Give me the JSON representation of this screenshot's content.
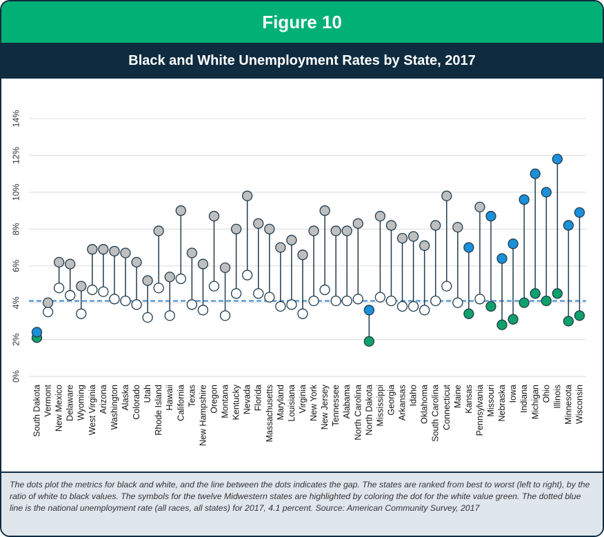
{
  "figure_label": "Figure 10",
  "chart_title": "Black and White Unemployment Rates by State, 2017",
  "footnote": "The dots plot the metrics for black and white, and the line between the dots indicates the gap. The states are ranked from best to worst (left to right), by the ratio of white to black values. The symbols for the twelve Midwestern states are highlighted by coloring the dot for the white value green. The dotted blue line is the national unemployment rate (all races, all states) for 2017, 4.1 percent. Source: American Community Survey, 2017",
  "colors": {
    "banner": "#00b074",
    "title_bar": "#0f2b40",
    "black_dot": "#bfbfbf",
    "white_dot": "#ffffff",
    "midwest_black_dot": "#1c8fd9",
    "midwest_white_dot": "#10a06a",
    "stem": "#1f3b4d",
    "national_line": "#5b9bd5",
    "grid": "#d9d9d9"
  },
  "chart_data": {
    "type": "scatter",
    "title": "Black and White Unemployment Rates by State, 2017",
    "ylim": [
      0,
      14
    ],
    "yticks": [
      "0%",
      "2%",
      "4%",
      "6%",
      "8%",
      "10%",
      "12%",
      "14%"
    ],
    "grid": true,
    "reference_line": {
      "value": 4.1
    },
    "categories": [
      "South Dakota",
      "Vermont",
      "New Mexico",
      "Delaware",
      "Wyoming",
      "West Virginia",
      "Arizona",
      "Washington",
      "Alaska",
      "Colorado",
      "Utah",
      "Rhode Island",
      "Hawaii",
      "California",
      "Texas",
      "New Hampshire",
      "Oregon",
      "Montana",
      "Kentucky",
      "Nevada",
      "Florida",
      "Massachusetts",
      "Maryland",
      "Louisiana",
      "Virginia",
      "New York",
      "New Jersey",
      "Tennessee",
      "Alabama",
      "North Carolina",
      "North Dakota",
      "Mississippi",
      "Georgia",
      "Arkansas",
      "Idaho",
      "Oklahoma",
      "South Carolina",
      "Connecticut",
      "Maine",
      "Kansas",
      "Pennsylvania",
      "Missouri",
      "Nebraska",
      "Iowa",
      "Indiana",
      "Michigan",
      "Ohio",
      "Illinois",
      "Minnesota",
      "Wisconsin"
    ],
    "series": [
      {
        "values": [
          2.4,
          4.0,
          6.2,
          6.1,
          4.9,
          6.9,
          6.9,
          6.8,
          6.7,
          6.2,
          5.2,
          7.9,
          5.4,
          9.0,
          6.7,
          6.1,
          8.7,
          5.9,
          8.0,
          9.8,
          8.3,
          8.0,
          7.0,
          7.4,
          6.6,
          7.9,
          9.0,
          7.9,
          7.9,
          8.3,
          3.6,
          8.7,
          8.2,
          7.5,
          7.6,
          7.1,
          8.2,
          9.8,
          8.1,
          7.0,
          9.2,
          8.7,
          6.4,
          7.2,
          9.6,
          11.0,
          10.0,
          11.8,
          8.2,
          8.9
        ]
      },
      {
        "values": [
          2.1,
          3.5,
          4.8,
          4.4,
          3.4,
          4.7,
          4.6,
          4.2,
          4.1,
          3.9,
          3.2,
          4.8,
          3.3,
          5.3,
          3.9,
          3.6,
          4.9,
          3.3,
          4.5,
          5.5,
          4.5,
          4.3,
          3.8,
          3.9,
          3.4,
          4.1,
          4.7,
          4.1,
          4.1,
          4.2,
          1.9,
          4.3,
          4.1,
          3.8,
          3.8,
          3.6,
          4.1,
          4.9,
          4.0,
          3.4,
          4.2,
          3.8,
          2.8,
          3.1,
          4.0,
          4.5,
          4.1,
          4.5,
          3.0,
          3.3
        ]
      }
    ],
    "midwest": [
      "South Dakota",
      "North Dakota",
      "Kansas",
      "Missouri",
      "Nebraska",
      "Iowa",
      "Indiana",
      "Michigan",
      "Ohio",
      "Illinois",
      "Minnesota",
      "Wisconsin"
    ]
  }
}
